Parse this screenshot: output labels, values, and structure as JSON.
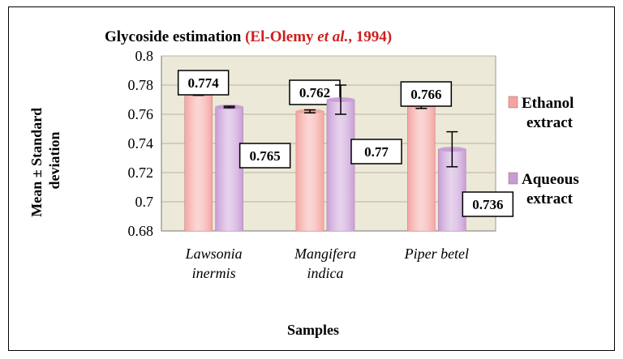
{
  "chart_data": {
    "type": "bar",
    "title": "Glycoside estimation",
    "title_citation_prefix": "(El-Olemy ",
    "title_citation_italic": "et al.",
    "title_citation_suffix": ", 1994)",
    "categories": [
      [
        "Lawsonia",
        "inermis"
      ],
      [
        "Mangifera",
        "indica"
      ],
      [
        "Piper betel"
      ]
    ],
    "series": [
      {
        "name": "Ethanol extract",
        "legend_lines": [
          "Ethanol",
          "extract"
        ],
        "color": "#f4a3a0",
        "values": [
          0.774,
          0.762,
          0.766
        ],
        "labels": [
          "0.774",
          "0.762",
          "0.766"
        ],
        "errors": [
          0.001,
          0.001,
          0.002
        ]
      },
      {
        "name": "Aqueous extract",
        "legend_lines": [
          "Aqueous",
          "extract"
        ],
        "color": "#c79bd6",
        "values": [
          0.765,
          0.77,
          0.736
        ],
        "labels": [
          "0.765",
          "0.77",
          "0.736"
        ],
        "errors": [
          0.0005,
          0.01,
          0.012
        ]
      }
    ],
    "xlabel": "Samples",
    "ylabel_lines": [
      "Mean ± Standard",
      "deviation"
    ],
    "ylim": [
      0.68,
      0.8
    ],
    "yticks": [
      0.68,
      0.7,
      0.72,
      0.74,
      0.76,
      0.78,
      0.8
    ],
    "ytick_labels": [
      "0.68",
      "0.7",
      "0.72",
      "0.74",
      "0.76",
      "0.78",
      "0.8"
    ],
    "grid": true,
    "plot_background": "#ece9d8",
    "legend_position": "right"
  }
}
